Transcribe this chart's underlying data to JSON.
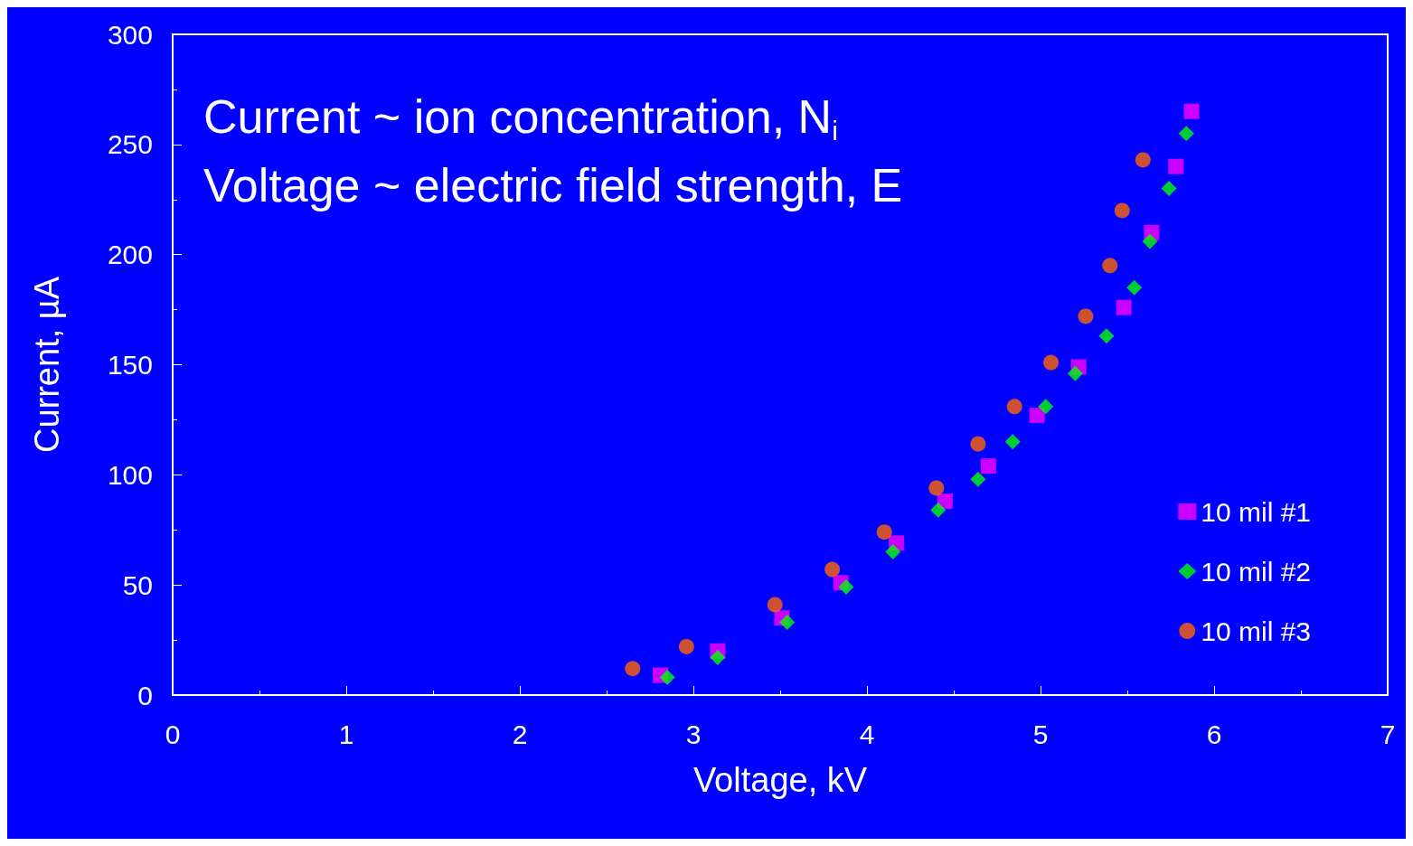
{
  "chart_data": {
    "type": "scatter",
    "xlabel": "Voltage, kV",
    "ylabel": "Current, µA",
    "annotations": [
      "Current ~ ion concentration, N$_{i}$",
      "Voltage ~ electric field strength, E"
    ],
    "xlim": [
      0,
      7
    ],
    "xticks": [
      0,
      1,
      2,
      3,
      4,
      5,
      6,
      7
    ],
    "ylim": [
      0,
      300
    ],
    "yticks": [
      0,
      50,
      100,
      150,
      200,
      250,
      300
    ],
    "grid": false,
    "legend": "bottom right",
    "series": [
      {
        "name": "10 mil #1",
        "color": "#ff00ff",
        "marker": "square",
        "x": [
          2.81,
          3.14,
          3.51,
          3.85,
          4.17,
          4.45,
          4.7,
          4.98,
          5.22,
          5.48,
          5.64,
          5.78,
          5.87
        ],
        "values": [
          9,
          20,
          35,
          51,
          69,
          88,
          104,
          127,
          149,
          176,
          210,
          240,
          265
        ]
      },
      {
        "name": "10 mil #2",
        "color": "#00ff00",
        "marker": "diamond",
        "x": [
          2.85,
          3.14,
          3.54,
          3.88,
          4.15,
          4.41,
          4.64,
          4.84,
          5.03,
          5.2,
          5.38,
          5.54,
          5.63,
          5.74,
          5.84
        ],
        "values": [
          8,
          17,
          33,
          49,
          65,
          84,
          98,
          115,
          131,
          146,
          163,
          185,
          206,
          230,
          255
        ]
      },
      {
        "name": "10 mil #3",
        "color": "#ff6600",
        "marker": "circle",
        "x": [
          2.65,
          2.96,
          3.47,
          3.8,
          4.1,
          4.4,
          4.64,
          4.85,
          5.06,
          5.26,
          5.4,
          5.47,
          5.59
        ],
        "values": [
          12,
          22,
          41,
          57,
          74,
          94,
          114,
          131,
          151,
          172,
          195,
          220,
          243
        ]
      }
    ]
  }
}
